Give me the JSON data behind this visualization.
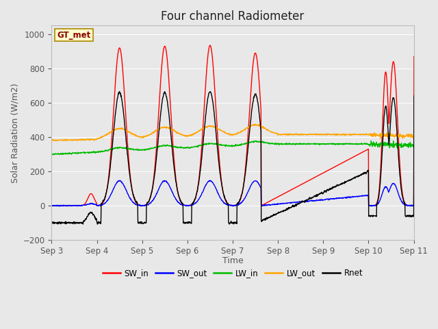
{
  "title": "Four channel Radiometer",
  "ylabel": "Solar Radiation (W/m2)",
  "xlabel": "Time",
  "annotation": "GT_met",
  "ylim": [
    -200,
    1050
  ],
  "xlim": [
    0,
    8
  ],
  "legend_entries": [
    "SW_in",
    "SW_out",
    "LW_in",
    "LW_out",
    "Rnet"
  ],
  "legend_colors": [
    "#ff0000",
    "#0000ff",
    "#00bb00",
    "#ffa500",
    "#000000"
  ],
  "x_ticks_labels": [
    "Sep 3",
    "Sep 4",
    "Sep 5",
    "Sep 6",
    "Sep 7",
    "Sep 8",
    "Sep 9",
    "Sep 10",
    "Sep 11"
  ],
  "yticks": [
    -200,
    0,
    200,
    400,
    600,
    800,
    1000
  ],
  "gridcolor": "#ffffff",
  "fig_bg": "#e8e8e8",
  "ax_bg": "#e8e8e8",
  "title_fontsize": 12,
  "label_fontsize": 9,
  "tick_fontsize": 8.5,
  "annotation_color": "#8B0000",
  "annotation_bg": "#ffffcc",
  "annotation_border": "#aa8800"
}
